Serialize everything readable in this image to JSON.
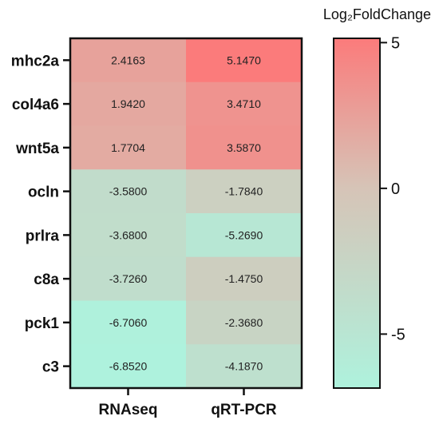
{
  "chart_data": {
    "type": "heatmap",
    "rows": [
      "mhc2a",
      "col4a6",
      "wnt5a",
      "ocln",
      "prlra",
      "c8a",
      "pck1",
      "c3"
    ],
    "columns": [
      "RNAseq",
      "qRT-PCR"
    ],
    "values": [
      [
        2.4163,
        5.147
      ],
      [
        1.942,
        3.471
      ],
      [
        1.7704,
        3.587
      ],
      [
        -3.58,
        -1.784
      ],
      [
        -3.68,
        -5.269
      ],
      [
        -3.726,
        -1.475
      ],
      [
        -6.706,
        -2.368
      ],
      [
        -6.852,
        -4.187
      ]
    ],
    "cell_labels": [
      [
        "2.4163",
        "5.1470"
      ],
      [
        "1.9420",
        "3.4710"
      ],
      [
        "1.7704",
        "3.5870"
      ],
      [
        "-3.5800",
        "-1.7840"
      ],
      [
        "-3.6800",
        "-5.2690"
      ],
      [
        "-3.7260",
        "-1.4750"
      ],
      [
        "-6.7060",
        "-2.3680"
      ],
      [
        "-6.8520",
        "-4.1870"
      ]
    ],
    "colorbar": {
      "title": "Log₂FoldChange",
      "range": [
        -6.852,
        5.147
      ],
      "ticks": [
        5,
        0,
        -5
      ],
      "tick_labels": [
        "5",
        "0",
        "-5"
      ],
      "color_low": "#aef2dd",
      "color_mid": "#d6c4b7",
      "color_high": "#fb7b7b"
    }
  }
}
